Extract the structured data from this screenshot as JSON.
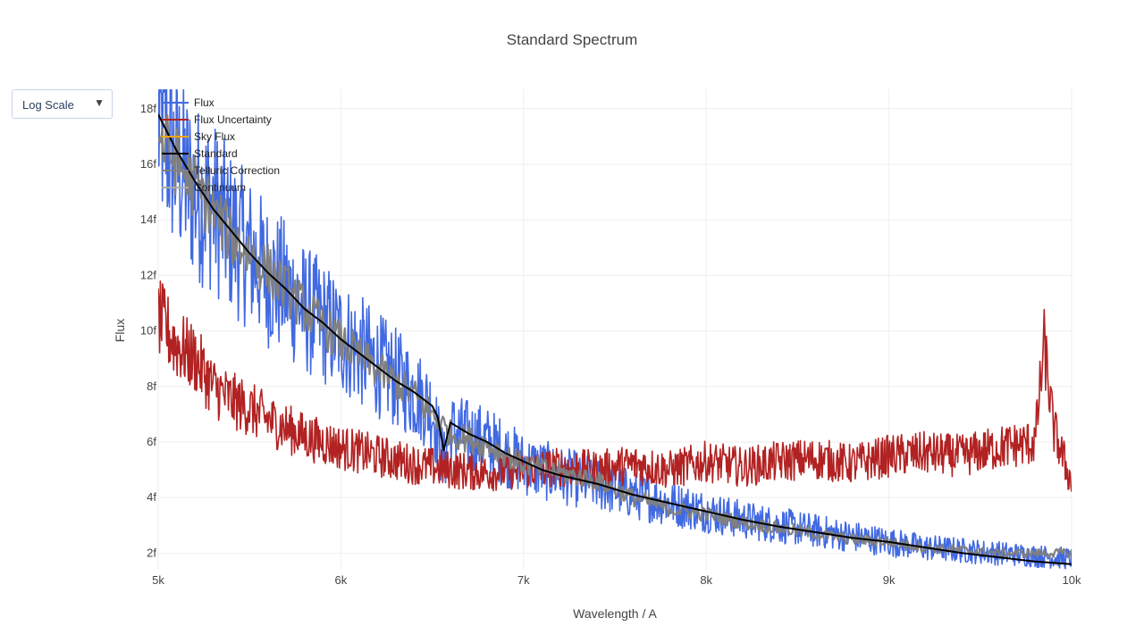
{
  "controls": {
    "scale_dropdown": {
      "label": "Log Scale",
      "arrow": "▼"
    }
  },
  "chart_data": {
    "type": "line",
    "title": "Standard Spectrum",
    "xlabel": "Wavelength / A",
    "ylabel": "Flux",
    "xlim": [
      5000,
      10000
    ],
    "ylim": [
      1.4e-15,
      1.87e-14
    ],
    "xticks": [
      5000,
      6000,
      7000,
      8000,
      9000,
      10000
    ],
    "xtick_labels": [
      "5k",
      "6k",
      "7k",
      "8k",
      "9k",
      "10k"
    ],
    "yticks": [
      2e-15,
      4e-15,
      6e-15,
      8e-15,
      1e-14,
      1.2e-14,
      1.4e-14,
      1.6e-14,
      1.8e-14
    ],
    "ytick_labels": [
      "2f",
      "4f",
      "6f",
      "8f",
      "10f",
      "12f",
      "14f",
      "16f",
      "18f"
    ],
    "grid": true,
    "legend_position": "top-left",
    "series": [
      {
        "name": "Flux",
        "color": "#4169e1",
        "x": [
          5000,
          5100,
          5200,
          5300,
          5400,
          5500,
          5600,
          5700,
          5800,
          5900,
          6000,
          6100,
          6200,
          6300,
          6400,
          6500,
          6563,
          6600,
          6700,
          6800,
          6900,
          7000,
          7200,
          7400,
          7600,
          7800,
          8000,
          8200,
          8400,
          8600,
          8800,
          9000,
          9200,
          9400,
          9600,
          9800,
          10000
        ],
        "y": [
          1.75e-14,
          1.6e-14,
          1.5e-14,
          1.45e-14,
          1.35e-14,
          1.28e-14,
          1.2e-14,
          1.15e-14,
          1.08e-14,
          1.03e-14,
          9.8e-15,
          9.3e-15,
          8.8e-15,
          8.3e-15,
          7.8e-15,
          7.2e-15,
          5.2e-15,
          6.4e-15,
          6.2e-15,
          6e-15,
          5.6e-15,
          5.2e-15,
          4.8e-15,
          4.5e-15,
          4.1e-15,
          3.8e-15,
          3.5e-15,
          3.2e-15,
          3e-15,
          2.8e-15,
          2.6e-15,
          2.4e-15,
          2.2e-15,
          2.1e-15,
          2e-15,
          1.9e-15,
          1.8e-15
        ]
      },
      {
        "name": "Flux Uncertainty",
        "color": "#b22222",
        "x": [
          5000,
          5100,
          5200,
          5300,
          5400,
          5500,
          5600,
          5800,
          6000,
          6200,
          6400,
          6600,
          6800,
          7000,
          7200,
          7400,
          7600,
          7800,
          8000,
          8200,
          8400,
          8600,
          8800,
          9000,
          9200,
          9400,
          9600,
          9800,
          9850,
          9900,
          10000
        ],
        "y": [
          1.05e-14,
          9.5e-15,
          9e-15,
          8e-15,
          7.5e-15,
          7.2e-15,
          6.8e-15,
          6.2e-15,
          5.8e-15,
          5.5e-15,
          5.2e-15,
          5e-15,
          4.9e-15,
          5e-15,
          5.1e-15,
          5e-15,
          5.2e-15,
          5e-15,
          5.3e-15,
          5.1e-15,
          5.3e-15,
          5.4e-15,
          5.2e-15,
          5.5e-15,
          5.6e-15,
          5.5e-15,
          5.8e-15,
          6e-15,
          9.5e-15,
          6.5e-15,
          4.5e-15
        ]
      },
      {
        "name": "Sky Flux",
        "color": "#ffa500",
        "x": [],
        "y": []
      },
      {
        "name": "Standard",
        "color": "#000000",
        "x": [
          5000,
          5100,
          5200,
          5300,
          5400,
          5500,
          5600,
          5700,
          5800,
          5900,
          6000,
          6100,
          6200,
          6300,
          6400,
          6500,
          6530,
          6563,
          6600,
          6700,
          6800,
          6900,
          7000,
          7100,
          7200,
          7400,
          7600,
          7800,
          8000,
          8200,
          8400,
          8600,
          8800,
          9000,
          9200,
          9400,
          9600,
          9800,
          10000
        ],
        "y": [
          1.78e-14,
          1.65e-14,
          1.54e-14,
          1.44e-14,
          1.36e-14,
          1.28e-14,
          1.21e-14,
          1.15e-14,
          1.08e-14,
          1.03e-14,
          9.7e-15,
          9.2e-15,
          8.7e-15,
          8.2e-15,
          7.8e-15,
          7.3e-15,
          6.9e-15,
          5.7e-15,
          6.7e-15,
          6.3e-15,
          6e-15,
          5.6e-15,
          5.3e-15,
          5e-15,
          4.8e-15,
          4.5e-15,
          4.1e-15,
          3.8e-15,
          3.5e-15,
          3.2e-15,
          2.95e-15,
          2.75e-15,
          2.55e-15,
          2.4e-15,
          2.2e-15,
          2e-15,
          1.85e-15,
          1.7e-15,
          1.6e-15
        ]
      },
      {
        "name": "Telluric Correction",
        "color": "#808080",
        "x": [
          5000,
          5200,
          5400,
          5600,
          5800,
          6000,
          6200,
          6400,
          6600,
          6800,
          7000,
          7200,
          7400,
          7600,
          7800,
          8000,
          8200,
          8400,
          8600,
          8800,
          9000,
          9200,
          9400,
          9600,
          9800,
          10000
        ],
        "y": [
          1.7e-14,
          1.52e-14,
          1.34e-14,
          1.22e-14,
          1.08e-14,
          9.6e-15,
          8.6e-15,
          7.7e-15,
          6.3e-15,
          5.9e-15,
          5.2e-15,
          4.9e-15,
          4.6e-15,
          4e-15,
          3.6e-15,
          3.4e-15,
          3.1e-15,
          2.9e-15,
          2.7e-15,
          2.5e-15,
          2.4e-15,
          2.2e-15,
          2.1e-15,
          2e-15,
          2e-15,
          2e-15
        ]
      },
      {
        "name": "Continuum",
        "color": "#a9a9a9",
        "x": [],
        "y": []
      }
    ]
  }
}
